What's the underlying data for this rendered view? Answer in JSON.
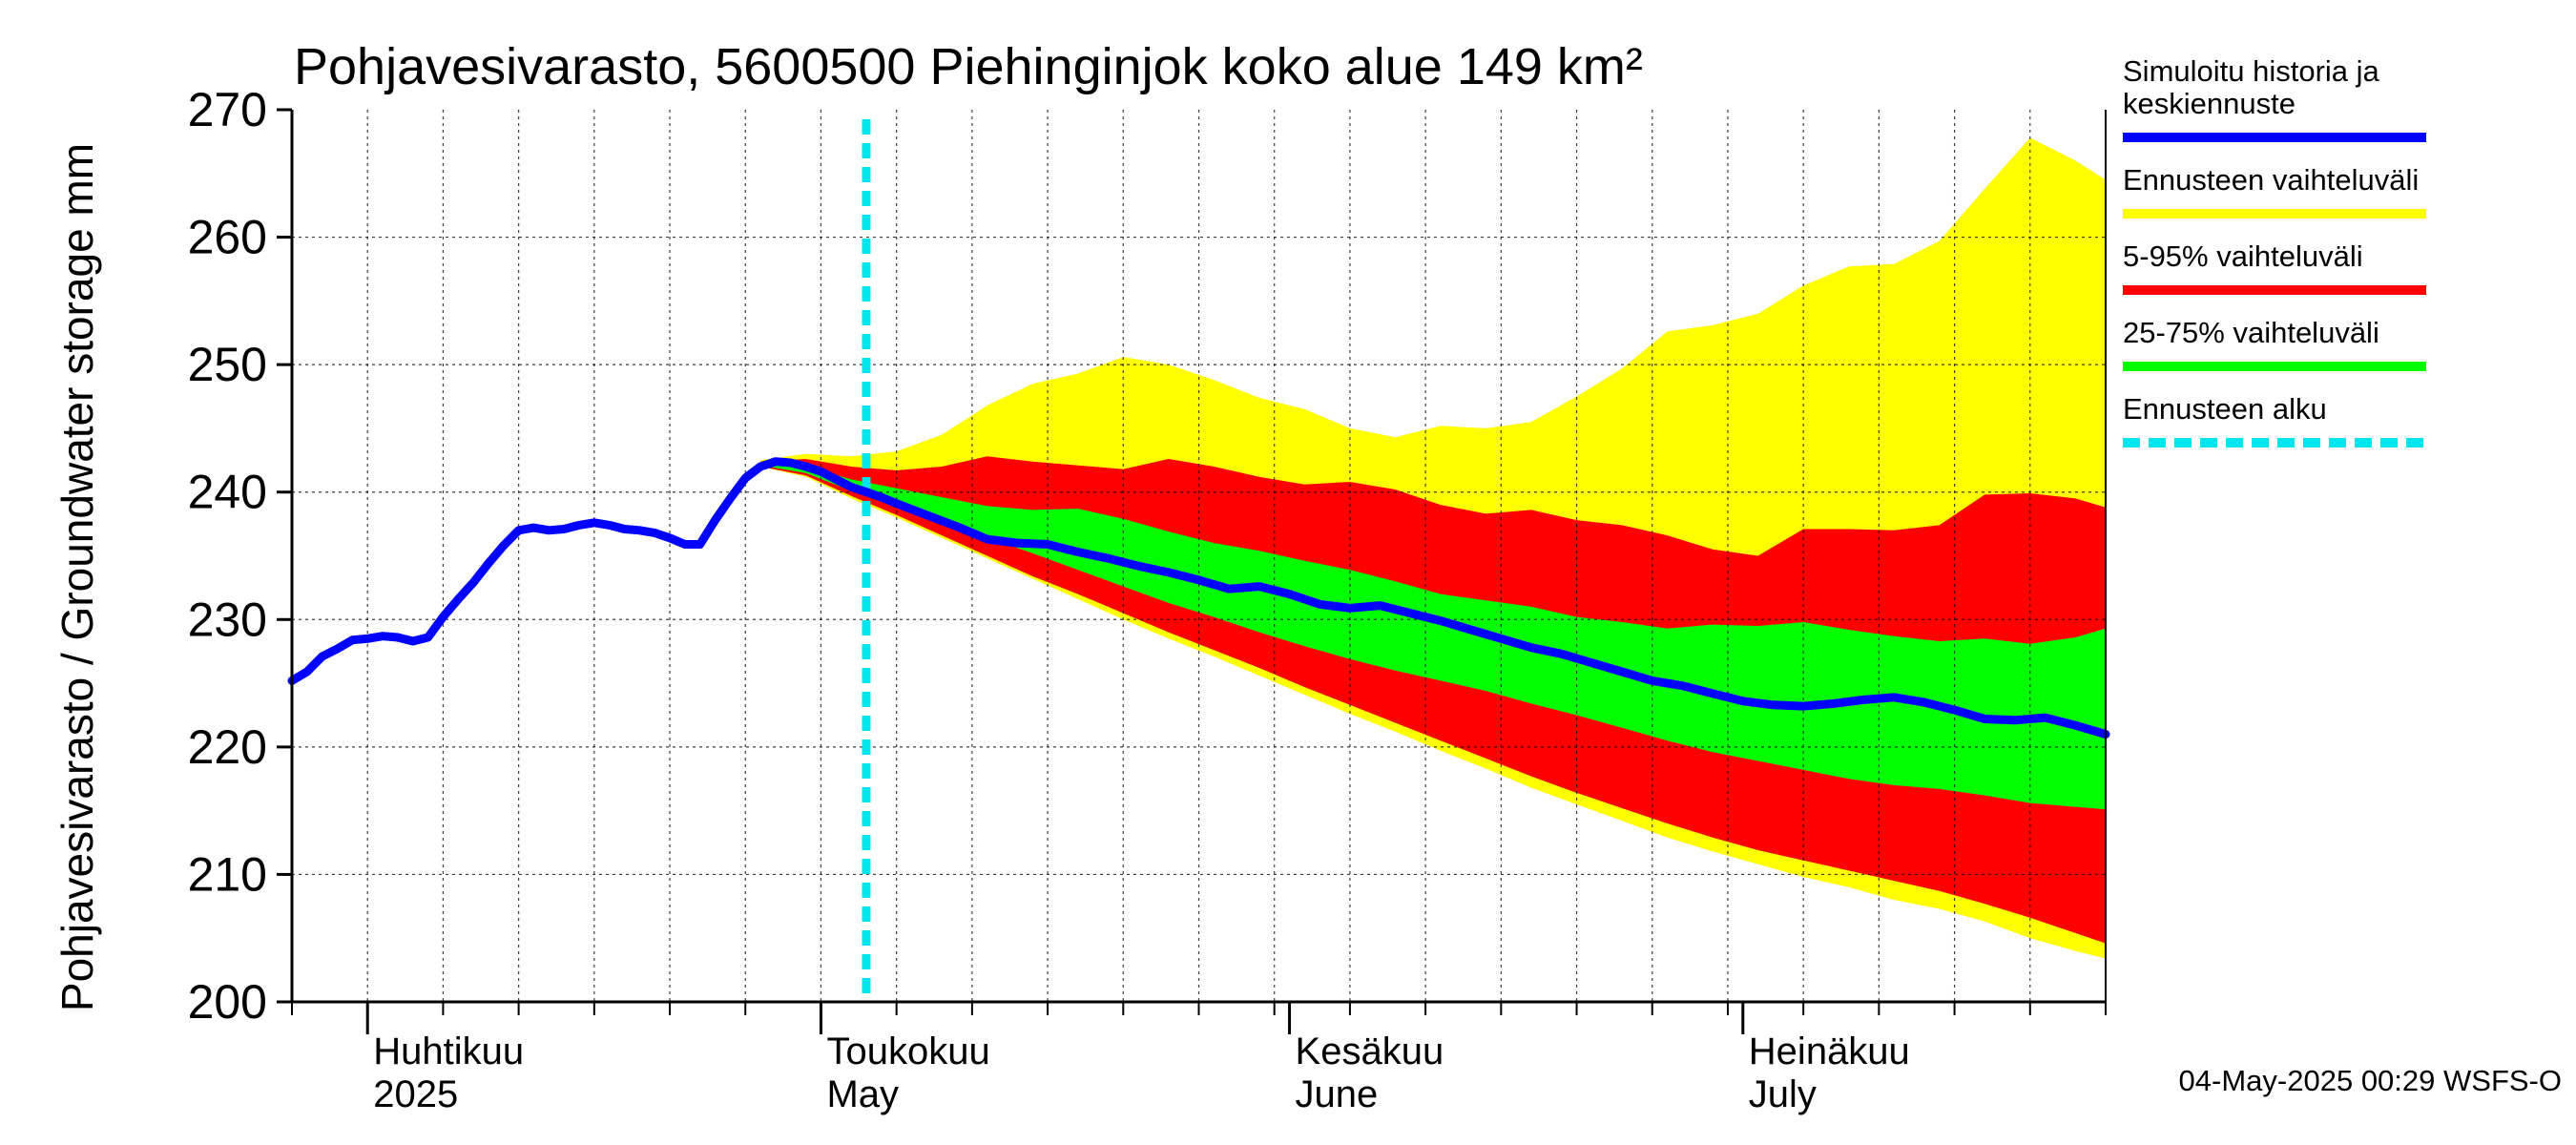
{
  "chart_data": {
    "type": "area",
    "title": "Pohjavesivarasto, 5600500 Piehinginjok koko alue 149 km²",
    "ylabel": "Pohjavesivarasto / Groundwater storage   mm",
    "ylim": [
      200,
      270
    ],
    "yticks": [
      200,
      210,
      220,
      230,
      240,
      250,
      260,
      270
    ],
    "x_range_days": [
      0,
      120
    ],
    "x_unit": "days since 2025-03-27",
    "forecast_start_day": 38,
    "month_ticks": [
      {
        "day": 5,
        "fi": "Huhtikuu",
        "en": "2025"
      },
      {
        "day": 35,
        "fi": "Toukokuu",
        "en": "May"
      },
      {
        "day": 66,
        "fi": "Kesäkuu",
        "en": "June"
      },
      {
        "day": 96,
        "fi": "Heinäkuu",
        "en": "July"
      }
    ],
    "day_ticks": [
      0,
      5,
      10,
      15,
      20,
      25,
      30,
      35,
      40,
      45,
      50,
      55,
      60,
      65,
      70,
      75,
      80,
      85,
      90,
      95,
      100,
      105,
      110,
      115,
      120
    ],
    "series": [
      {
        "name": "Simuloitu historia ja keskiennuste",
        "color": "#0000ff",
        "kind": "line",
        "x": [
          0,
          1,
          2,
          3,
          4,
          5,
          6,
          7,
          8,
          9,
          10,
          11,
          12,
          13,
          14,
          15,
          16,
          17,
          18,
          19,
          20,
          21,
          22,
          23,
          24,
          25,
          26,
          27,
          28,
          29,
          30,
          31,
          32,
          33,
          34,
          35,
          36,
          37,
          38,
          39,
          40,
          42,
          44,
          46,
          48,
          50,
          52,
          54,
          56,
          58,
          60,
          62,
          64,
          66,
          68,
          70,
          72,
          74,
          76,
          78,
          80,
          82,
          84,
          86,
          88,
          90,
          92,
          94,
          96,
          98,
          100,
          102,
          104,
          106,
          108,
          110,
          112,
          114,
          116,
          118,
          120
        ],
        "values": [
          225.2,
          225.9,
          227.1,
          227.7,
          228.4,
          228.5,
          228.7,
          228.6,
          228.3,
          228.6,
          230.2,
          231.6,
          232.9,
          234.4,
          235.8,
          237.0,
          237.2,
          237.0,
          237.1,
          237.4,
          237.6,
          237.4,
          237.1,
          237.0,
          236.8,
          236.4,
          235.9,
          235.9,
          237.8,
          239.5,
          241.1,
          242.0,
          242.4,
          242.3,
          242.0,
          241.6,
          241.0,
          240.4,
          240.0,
          239.6,
          239.1,
          238.2,
          237.3,
          236.3,
          236.0,
          235.9,
          235.3,
          234.8,
          234.2,
          233.7,
          233.1,
          232.4,
          232.6,
          232.0,
          231.2,
          230.9,
          231.1,
          230.5,
          229.9,
          229.2,
          228.5,
          227.8,
          227.3,
          226.6,
          225.9,
          225.2,
          224.8,
          224.2,
          223.6,
          223.3,
          223.2,
          223.4,
          223.7,
          223.9,
          223.5,
          222.9,
          222.2,
          222.1,
          222.3,
          221.7,
          221.0
        ]
      },
      {
        "name": "Ennusteen vaihteluväli",
        "color": "#ffff00",
        "kind": "band",
        "x": [
          31,
          34,
          37,
          40,
          43,
          46,
          49,
          52,
          55,
          58,
          61,
          64,
          67,
          70,
          73,
          76,
          79,
          82,
          85,
          88,
          91,
          94,
          97,
          100,
          103,
          106,
          109,
          112,
          115,
          118,
          120
        ],
        "upper": [
          242.5,
          243.0,
          242.8,
          243.2,
          244.5,
          246.8,
          248.5,
          249.3,
          250.6,
          250.0,
          248.8,
          247.4,
          246.5,
          245.0,
          244.3,
          245.2,
          245.0,
          245.5,
          247.5,
          249.7,
          252.6,
          253.1,
          254.0,
          256.2,
          257.7,
          257.9,
          259.7,
          263.8,
          267.8,
          266.0,
          264.5
        ],
        "lower": [
          242.0,
          241.2,
          239.5,
          238.0,
          236.4,
          234.8,
          233.2,
          231.6,
          230.0,
          228.5,
          227.1,
          225.6,
          224.1,
          222.6,
          221.2,
          219.7,
          218.3,
          216.8,
          215.5,
          214.2,
          212.9,
          211.8,
          210.8,
          209.8,
          209.0,
          208.0,
          207.3,
          206.3,
          205.0,
          204.0,
          203.4
        ]
      },
      {
        "name": "5-95% vaihteluväli",
        "color": "#ff0000",
        "kind": "band",
        "x": [
          31,
          34,
          37,
          40,
          43,
          46,
          49,
          52,
          55,
          58,
          61,
          64,
          67,
          70,
          73,
          76,
          79,
          82,
          85,
          88,
          91,
          94,
          97,
          100,
          103,
          106,
          109,
          112,
          115,
          118,
          120
        ],
        "upper": [
          242.4,
          242.6,
          242.0,
          241.7,
          242.0,
          242.8,
          242.4,
          242.1,
          241.8,
          242.6,
          242.0,
          241.2,
          240.6,
          240.8,
          240.2,
          239.0,
          238.3,
          238.6,
          237.8,
          237.4,
          236.6,
          235.5,
          235.0,
          237.1,
          237.1,
          237.0,
          237.4,
          239.8,
          239.9,
          239.5,
          238.8
        ],
        "lower": [
          242.0,
          241.3,
          239.7,
          238.2,
          236.6,
          235.0,
          233.4,
          232.0,
          230.5,
          229.0,
          227.6,
          226.2,
          224.7,
          223.3,
          221.9,
          220.5,
          219.1,
          217.7,
          216.4,
          215.2,
          214.0,
          212.9,
          211.9,
          211.1,
          210.3,
          209.5,
          208.7,
          207.7,
          206.6,
          205.4,
          204.6
        ]
      },
      {
        "name": "25-75% vaihteluväli",
        "color": "#00ff00",
        "kind": "band",
        "x": [
          31,
          34,
          37,
          40,
          43,
          46,
          49,
          52,
          55,
          58,
          61,
          64,
          67,
          70,
          73,
          76,
          79,
          82,
          85,
          88,
          91,
          94,
          97,
          100,
          103,
          106,
          109,
          112,
          115,
          118,
          120
        ],
        "upper": [
          242.3,
          242.0,
          241.0,
          240.3,
          239.6,
          238.9,
          238.6,
          238.7,
          237.9,
          236.9,
          236.0,
          235.4,
          234.6,
          233.9,
          233.0,
          232.0,
          231.5,
          231.0,
          230.2,
          229.8,
          229.3,
          229.6,
          229.5,
          229.8,
          229.2,
          228.7,
          228.3,
          228.5,
          228.1,
          228.6,
          229.3
        ],
        "lower": [
          242.1,
          241.5,
          240.1,
          238.8,
          237.6,
          236.4,
          235.2,
          233.9,
          232.6,
          231.3,
          230.2,
          229.0,
          227.9,
          226.9,
          226.0,
          225.2,
          224.4,
          223.4,
          222.5,
          221.5,
          220.5,
          219.6,
          218.9,
          218.2,
          217.5,
          217.0,
          216.7,
          216.2,
          215.6,
          215.3,
          215.1
        ]
      },
      {
        "name": "Ennusteen alku",
        "color": "#00e5ee",
        "kind": "vline"
      }
    ],
    "legend": {
      "position": "right",
      "entries": [
        {
          "label_lines": [
            "Simuloitu historia ja",
            "keskiennuste"
          ],
          "color": "#0000ff",
          "style": "solid"
        },
        {
          "label_lines": [
            "Ennusteen vaihteluväli"
          ],
          "color": "#ffff00",
          "style": "solid"
        },
        {
          "label_lines": [
            "5-95% vaihteluväli"
          ],
          "color": "#ff0000",
          "style": "solid"
        },
        {
          "label_lines": [
            "25-75% vaihteluväli"
          ],
          "color": "#00ff00",
          "style": "solid"
        },
        {
          "label_lines": [
            "Ennusteen alku"
          ],
          "color": "#00e5ee",
          "style": "dashed"
        }
      ]
    },
    "timestamp": "04-May-2025 00:29 WSFS-O",
    "grid": true
  }
}
